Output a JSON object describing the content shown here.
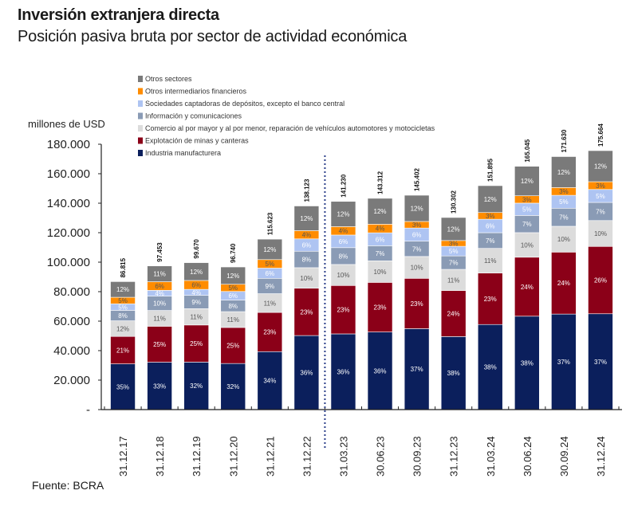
{
  "header": {
    "title": "Inversión extranjera directa",
    "subtitle": "Posición pasiva bruta por sector de actividad económica"
  },
  "footer": {
    "source": "Fuente: BCRA"
  },
  "chart_data": {
    "type": "bar",
    "stacked": true,
    "title": "Inversión extranjera directa",
    "subtitle": "Posición pasiva bruta por sector de actividad económica",
    "ylabel": "millones de USD",
    "xlabel": "",
    "ylim": [
      0,
      180000
    ],
    "yticks": [
      0,
      20000,
      40000,
      60000,
      80000,
      100000,
      120000,
      140000,
      160000,
      180000
    ],
    "ytick_labels": [
      "-",
      "20.000",
      "40.000",
      "60.000",
      "80.000",
      "100.000",
      "120.000",
      "140.000",
      "160.000",
      "180.000"
    ],
    "grid": false,
    "legend_position": "top-left",
    "separator_after_category": "31.12.22",
    "categories": [
      "31.12.17",
      "31.12.18",
      "31.12.19",
      "31.12.20",
      "31.12.21",
      "31.12.22",
      "31.03.23",
      "30.06.23",
      "30.09.23",
      "31.12.23",
      "31.03.24",
      "30.06.24",
      "30.09.24",
      "31.12.24"
    ],
    "totals": [
      86815,
      97453,
      99670,
      96740,
      115623,
      138123,
      141230,
      143312,
      145402,
      130302,
      151895,
      165045,
      171630,
      175664
    ],
    "total_labels": [
      "86.815",
      "97.453",
      "99.670",
      "96.740",
      "115.623",
      "138.123",
      "141.230",
      "143.312",
      "145.402",
      "130.302",
      "151.895",
      "165.045",
      "171.630",
      "175.664"
    ],
    "series": [
      {
        "name": "Industria manufacturera",
        "color": "#0b1f5c",
        "label_dark": false,
        "values": [
          35,
          33,
          32,
          32,
          34,
          36,
          36,
          36,
          37,
          38,
          38,
          38,
          37,
          37
        ]
      },
      {
        "name": "Explotación de minas y canteras",
        "color": "#8b0018",
        "label_dark": false,
        "values": [
          21,
          25,
          25,
          25,
          23,
          23,
          23,
          23,
          23,
          24,
          23,
          24,
          24,
          26
        ]
      },
      {
        "name": "Comercio al por mayor y al por menor, reparación de vehículos automotores y motocicletas",
        "color": "#dcdcdc",
        "label_dark": true,
        "values": [
          12,
          11,
          11,
          11,
          11,
          10,
          10,
          10,
          10,
          11,
          11,
          10,
          10,
          10
        ]
      },
      {
        "name": "Información y comunicaciones",
        "color": "#8a9bb5",
        "label_dark": false,
        "values": [
          8,
          10,
          9,
          8,
          9,
          8,
          8,
          7,
          7,
          7,
          7,
          7,
          7,
          7
        ]
      },
      {
        "name": "Sociedades captadoras de depósitos, excepto el banco central",
        "color": "#aec4f2",
        "label_dark": false,
        "values": [
          5,
          4,
          4,
          6,
          6,
          6,
          6,
          6,
          6,
          5,
          6,
          5,
          5,
          5
        ]
      },
      {
        "name": "Otros intermediarios financieros",
        "color": "#ff8c00",
        "label_dark": true,
        "values": [
          5,
          6,
          6,
          5,
          5,
          4,
          4,
          4,
          3,
          3,
          3,
          3,
          3,
          3
        ]
      },
      {
        "name": "Otros sectores",
        "color": "#7a7a7a",
        "label_dark": false,
        "values": [
          12,
          11,
          12,
          12,
          12,
          12,
          12,
          12,
          12,
          12,
          12,
          12,
          12,
          12
        ]
      }
    ],
    "legend_order": [
      "Otros sectores",
      "Otros intermediarios financieros",
      "Sociedades captadoras de depósitos, excepto el banco central",
      "Información y comunicaciones",
      "Comercio al por mayor y al por menor, reparación de vehículos automotores y motocicletas",
      "Explotación de minas y canteras",
      "Industria manufacturera"
    ]
  }
}
